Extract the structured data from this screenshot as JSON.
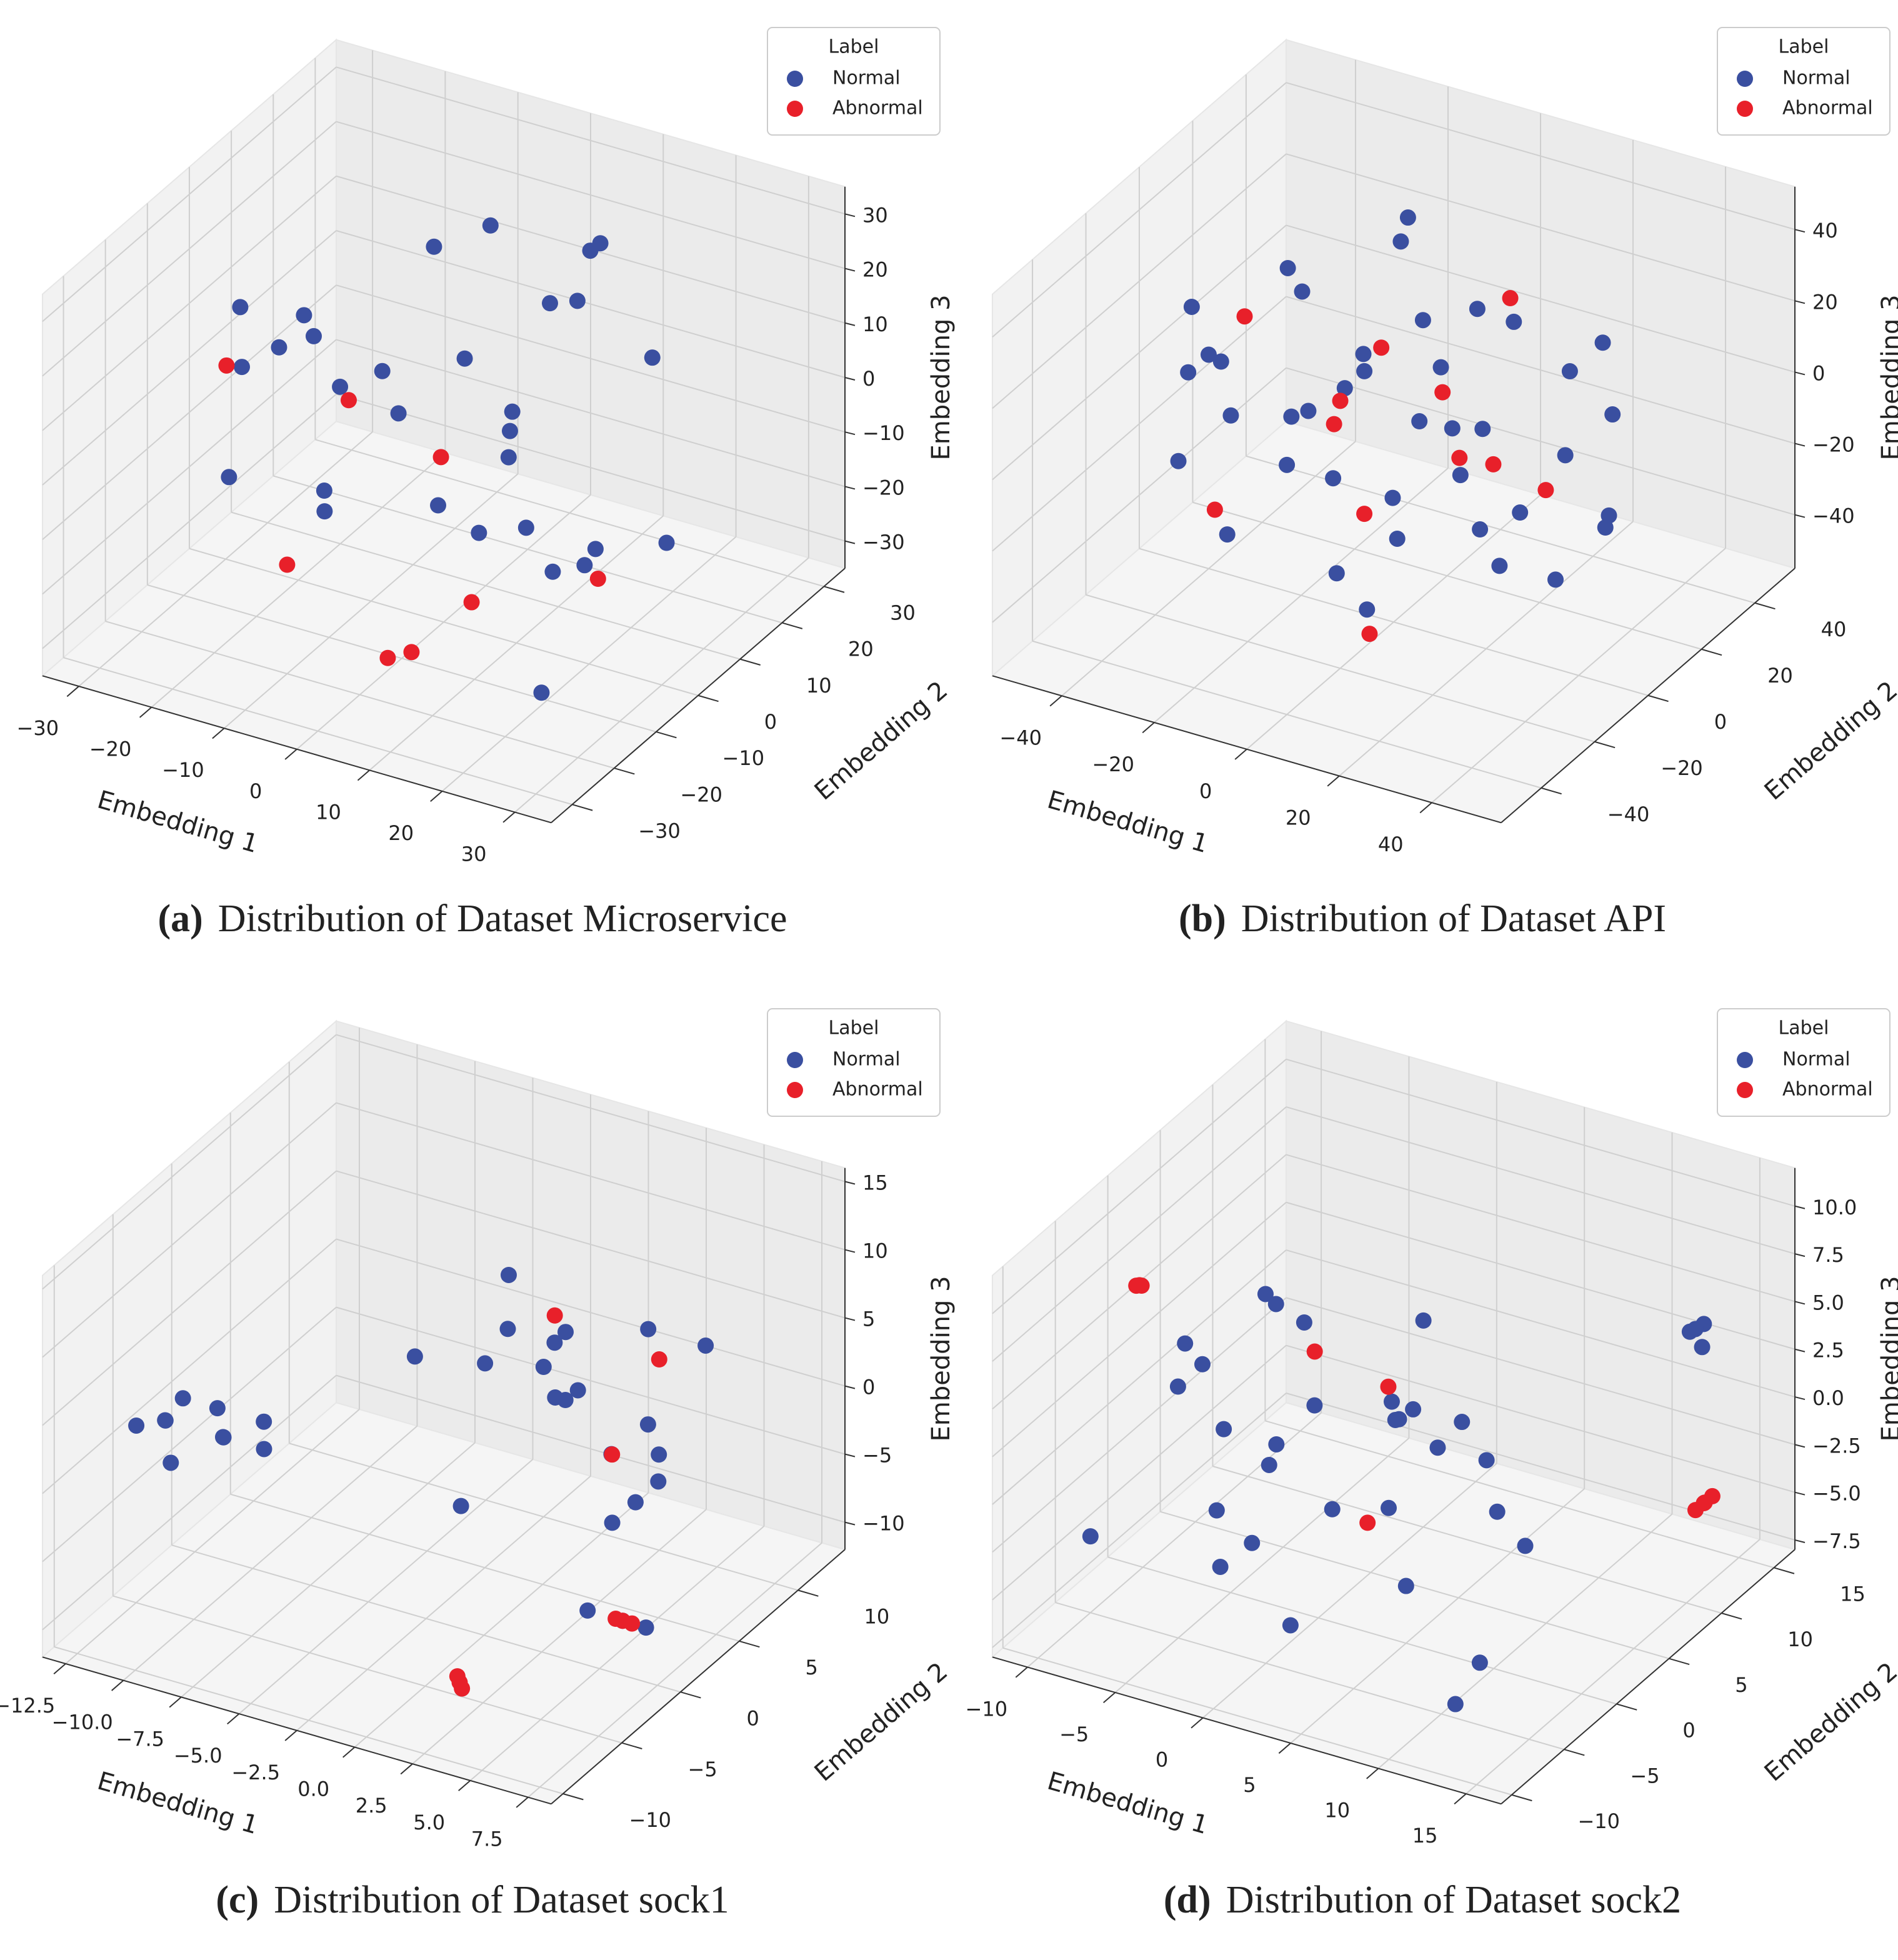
{
  "chart_data": [
    {
      "type": "scatter3d",
      "caption_label": "(a)",
      "caption": "Distribution of Dataset Microservice",
      "xlabel": "Embedding 1",
      "ylabel": "Embedding 2",
      "zlabel": "Embedding 3",
      "legend_title": "Label",
      "legend": "upper right",
      "grid": true,
      "xlim": [
        -35,
        35
      ],
      "ylim": [
        -35,
        35
      ],
      "zlim": [
        -35,
        35
      ],
      "xticks": [
        {
          "value": -30,
          "label": "−30"
        },
        {
          "value": -20,
          "label": "−20"
        },
        {
          "value": -10,
          "label": "−10"
        },
        0,
        10,
        20,
        30
      ],
      "yticks": [
        {
          "value": -30,
          "label": "−30"
        },
        {
          "value": -20,
          "label": "−20"
        },
        {
          "value": -10,
          "label": "−10"
        },
        0,
        10,
        20,
        30
      ],
      "zticks": [
        {
          "value": -30,
          "label": "−30"
        },
        {
          "value": -20,
          "label": "−20"
        },
        {
          "value": -10,
          "label": "−10"
        },
        0,
        10,
        20,
        30
      ],
      "series": [
        {
          "name": "Normal",
          "color": "#3a4fa0",
          "x": [
            -25,
            -20,
            -15,
            -10,
            -5,
            0,
            5,
            10,
            15,
            20,
            25,
            -22,
            -12,
            -2,
            8,
            18,
            -18,
            -8,
            2,
            12,
            22,
            -28,
            -14,
            6,
            16,
            -6,
            10,
            24,
            -16,
            4
          ],
          "y": [
            10,
            20,
            -5,
            15,
            25,
            5,
            -10,
            20,
            0,
            -15,
            -20,
            -10,
            10,
            -25,
            18,
            5,
            -20,
            25,
            12,
            -5,
            15,
            0,
            -15,
            -2,
            22,
            -18,
            8,
            -8,
            3,
            28
          ],
          "z": [
            5,
            -10,
            15,
            20,
            -15,
            10,
            -5,
            25,
            -20,
            0,
            -25,
            10,
            -8,
            5,
            15,
            -18,
            -2,
            18,
            -12,
            8,
            -22,
            12,
            20,
            -15,
            5,
            -5,
            22,
            -10,
            0,
            16
          ]
        },
        {
          "name": "Abnormal",
          "color": "#e8202a",
          "x": [
            -27,
            -20,
            -10,
            10,
            20,
            27,
            5,
            -5
          ],
          "y": [
            -5,
            12,
            -20,
            -25,
            -28,
            -10,
            -22,
            8
          ],
          "z": [
            5,
            -10,
            -15,
            -20,
            -5,
            -10,
            -25,
            -12
          ]
        }
      ]
    },
    {
      "type": "scatter3d",
      "caption_label": "(b)",
      "caption": "Distribution of Dataset API",
      "xlabel": "Embedding 1",
      "ylabel": "Embedding 2",
      "zlabel": "Embedding 3",
      "legend_title": "Label",
      "legend": "upper right",
      "grid": true,
      "xlim": [
        -55,
        55
      ],
      "ylim": [
        -55,
        55
      ],
      "zlim": [
        -55,
        52
      ],
      "xticks": [
        {
          "value": -40,
          "label": "−40"
        },
        {
          "value": -20,
          "label": "−20"
        },
        0,
        20,
        40
      ],
      "yticks": [
        {
          "value": -40,
          "label": "−40"
        },
        {
          "value": -20,
          "label": "−20"
        },
        0,
        20,
        40
      ],
      "zticks": [
        {
          "value": -40,
          "label": "−40"
        },
        {
          "value": -20,
          "label": "−20"
        },
        0,
        20,
        40
      ],
      "series": [
        {
          "name": "Normal",
          "color": "#3a4fa0",
          "x": [
            -40,
            -30,
            -20,
            -10,
            0,
            10,
            20,
            30,
            40,
            -35,
            -25,
            -15,
            -5,
            5,
            15,
            25,
            35,
            -40,
            -20,
            0,
            20,
            40,
            -30,
            -10,
            10,
            30,
            -25,
            -5,
            15,
            35,
            -15,
            5,
            25,
            -35,
            0,
            -20,
            20,
            0,
            10,
            -10
          ],
          "y": [
            0,
            20,
            -30,
            35,
            -40,
            15,
            -25,
            30,
            -5,
            -15,
            25,
            -35,
            10,
            -20,
            40,
            -10,
            20,
            35,
            -5,
            25,
            -35,
            10,
            -25,
            -45,
            30,
            -30,
            5,
            40,
            -15,
            0,
            15,
            -30,
            35,
            -20,
            -10,
            40,
            5,
            45,
            -40,
            20
          ],
          "z": [
            5,
            -20,
            30,
            -10,
            15,
            -35,
            25,
            -5,
            10,
            30,
            -15,
            20,
            -40,
            35,
            -5,
            15,
            -25,
            0,
            40,
            -30,
            10,
            -20,
            20,
            -5,
            -40,
            30,
            -10,
            5,
            45,
            -30,
            0,
            -20,
            10,
            -10,
            -45,
            25,
            -35,
            0,
            15,
            35
          ]
        },
        {
          "name": "Abnormal",
          "color": "#e8202a",
          "x": [
            -38,
            -20,
            0,
            15,
            30,
            -10,
            10,
            25,
            -30,
            5,
            20,
            -15
          ],
          "y": [
            10,
            30,
            -20,
            -35,
            5,
            -5,
            20,
            -25,
            -15,
            35,
            -10,
            15
          ],
          "z": [
            10,
            -5,
            20,
            -30,
            -10,
            0,
            -20,
            35,
            -25,
            15,
            5,
            -40
          ]
        }
      ]
    },
    {
      "type": "scatter3d",
      "caption_label": "(c)",
      "caption": "Distribution of Dataset sock1",
      "xlabel": "Embedding 1",
      "ylabel": "Embedding 2",
      "zlabel": "Embedding 3",
      "legend_title": "Label",
      "legend": "upper right",
      "grid": true,
      "xlim": [
        -13.5,
        8.5
      ],
      "ylim": [
        -11,
        14
      ],
      "zlim": [
        -12,
        16
      ],
      "xticks": [
        {
          "value": -12.5,
          "label": "−12.5"
        },
        {
          "value": -10,
          "label": "−10.0"
        },
        {
          "value": -7.5,
          "label": "−7.5"
        },
        {
          "value": -5,
          "label": "−5.0"
        },
        {
          "value": -2.5,
          "label": "−2.5"
        },
        {
          "value": 0,
          "label": "0.0"
        },
        2.5,
        {
          "value": 5,
          "label": "5.0"
        },
        7.5
      ],
      "yticks": [
        {
          "value": -10,
          "label": "−10"
        },
        {
          "value": -5,
          "label": "−5"
        },
        0,
        5,
        10
      ],
      "zticks": [
        {
          "value": -10,
          "label": "−10"
        },
        {
          "value": -5,
          "label": "−5"
        },
        0,
        5,
        10,
        15
      ],
      "series": [
        {
          "name": "Normal",
          "color": "#3a4fa0",
          "x": [
            -13,
            -12,
            -11,
            -10,
            -9,
            -12.5,
            -11.5,
            -10.5,
            -9.5,
            -8.5,
            -4,
            -3,
            -2,
            -1,
            0,
            1,
            2,
            3,
            4,
            5,
            -3.5,
            -1.5,
            0.5,
            2.5,
            4.5,
            -2.5,
            1.5,
            3.5,
            -0.5,
            6,
            5.5,
            6.5
          ],
          "y": [
            -4,
            -2,
            -5,
            -3,
            -1,
            -2.5,
            -4.5,
            -1.5,
            -3.5,
            -2,
            2,
            6,
            10,
            4,
            8,
            12,
            3,
            7,
            11,
            5,
            9,
            1,
            13,
            6,
            2,
            10,
            4,
            8,
            7,
            0,
            -2,
            1
          ],
          "z": [
            0,
            1,
            -1,
            2,
            -2,
            -0.5,
            1.5,
            -1.5,
            0.5,
            1,
            5,
            2,
            -3,
            7,
            0,
            -5,
            4,
            -6,
            3,
            -2,
            6,
            -4,
            1,
            -7,
            2,
            -1,
            8,
            -3,
            4,
            -8,
            -6,
            -9
          ]
        },
        {
          "name": "Abnormal",
          "color": "#e8202a",
          "x": [
            2,
            2.2,
            1.8,
            6,
            6.3,
            5.8,
            -1,
            3,
            2.5
          ],
          "y": [
            -6,
            -6.2,
            -5.8,
            0,
            0.2,
            -0.2,
            8,
            5,
            10
          ],
          "z": [
            -10,
            -10.2,
            -9.8,
            -8,
            -8.2,
            -7.8,
            5,
            -1,
            2
          ]
        }
      ]
    },
    {
      "type": "scatter3d",
      "caption_label": "(d)",
      "caption": "Distribution of Dataset sock2",
      "xlabel": "Embedding 1",
      "ylabel": "Embedding 2",
      "zlabel": "Embedding 3",
      "legend_title": "Label",
      "legend": "upper right",
      "grid": true,
      "xlim": [
        -12,
        17
      ],
      "ylim": [
        -11,
        17
      ],
      "zlim": [
        -8,
        12
      ],
      "xticks": [
        {
          "value": -10,
          "label": "−10"
        },
        {
          "value": -5,
          "label": "−5"
        },
        0,
        5,
        10,
        15
      ],
      "yticks": [
        {
          "value": -10,
          "label": "−10"
        },
        {
          "value": -5,
          "label": "−5"
        },
        0,
        5,
        10,
        15
      ],
      "zticks": [
        {
          "value": -7.5,
          "label": "−7.5"
        },
        {
          "value": -5,
          "label": "−5.0"
        },
        {
          "value": -2.5,
          "label": "−2.5"
        },
        {
          "value": 0,
          "label": "0.0"
        },
        2.5,
        {
          "value": 5,
          "label": "5.0"
        },
        7.5,
        {
          "value": 10,
          "label": "10.0"
        }
      ],
      "series": [
        {
          "name": "Normal",
          "color": "#3a4fa0",
          "x": [
            -10,
            -8,
            -6,
            -4,
            -2,
            0,
            2,
            4,
            6,
            8,
            10,
            12,
            -9,
            -7,
            -5,
            -3,
            -1,
            1,
            3,
            5,
            7,
            9,
            11,
            -6,
            -2,
            2,
            6,
            -4,
            0,
            4,
            14,
            14.5,
            15,
            14.2
          ],
          "y": [
            -5,
            0,
            5,
            -3,
            2,
            7,
            -6,
            1,
            6,
            -2,
            3,
            -7,
            4,
            -1,
            8,
            -4,
            3,
            -8,
            5,
            0,
            -5,
            2,
            -3,
            6,
            -6,
            4,
            -1,
            2,
            -4,
            7,
            12,
            12.5,
            11.5,
            12.2
          ],
          "z": [
            -4,
            2,
            5,
            -2,
            6,
            0,
            -5,
            3,
            -1,
            4,
            -3,
            -6,
            1,
            5,
            -2,
            3,
            -4,
            0,
            6,
            -5,
            2,
            -1,
            -6,
            4,
            -3,
            1,
            5,
            -2,
            3,
            0,
            5,
            5.3,
            4.7,
            5.1
          ]
        },
        {
          "name": "Abnormal",
          "color": "#e8202a",
          "x": [
            -9,
            -8.7,
            -9.3,
            16,
            16.3,
            15.7,
            16.1,
            -2,
            4,
            1
          ],
          "y": [
            -2,
            -2.3,
            -1.8,
            10,
            10.3,
            9.7,
            9.9,
            3,
            -2,
            5
          ],
          "z": [
            8,
            8.2,
            7.8,
            -2.5,
            -2.2,
            -2.8,
            -2.4,
            4,
            -1,
            2
          ]
        }
      ]
    }
  ]
}
